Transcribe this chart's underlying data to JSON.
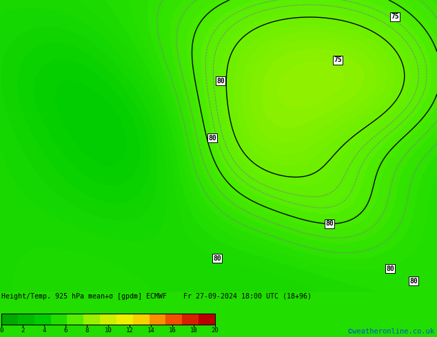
{
  "title": "Height/Temp. 925 hPa mean+σ [gpdm] ECMWF    Fr 27-09-2024 18:00 UTC (18+96)",
  "watermark": "©weatheronline.co.uk",
  "cbar_ticks": [
    0,
    2,
    4,
    6,
    8,
    10,
    12,
    14,
    16,
    18,
    20
  ],
  "bg_color": "#22dd00",
  "figsize": [
    6.34,
    4.9
  ],
  "dpi": 100,
  "colormap": [
    [
      0.0,
      "#00aa00"
    ],
    [
      0.15,
      "#00cc00"
    ],
    [
      0.25,
      "#22dd00"
    ],
    [
      0.35,
      "#55ee00"
    ],
    [
      0.45,
      "#88f000"
    ],
    [
      0.55,
      "#bbf000"
    ],
    [
      0.65,
      "#ddf000"
    ],
    [
      0.72,
      "#eef000"
    ],
    [
      0.78,
      "#f8e000"
    ],
    [
      0.84,
      "#f8b000"
    ],
    [
      0.9,
      "#f07000"
    ],
    [
      0.95,
      "#e03000"
    ],
    [
      1.0,
      "#cc0000"
    ]
  ]
}
